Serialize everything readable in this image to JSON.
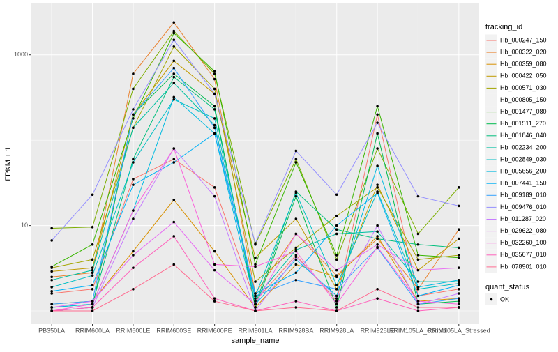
{
  "chart_data": {
    "type": "line",
    "x_label": "sample_name",
    "y_label": "FPKM + 1",
    "categories": [
      "PB350LA",
      "RRIM600LA",
      "RRIM600LE",
      "RRIM600SE",
      "RRIM600PE",
      "RRIM901LA",
      "RRIM928BA",
      "RRIM928LA",
      "RRIM928LE",
      "RRIM105LA_Control",
      "RRIM105LA_Stressed"
    ],
    "log_y": true,
    "grid": true,
    "ylim": [
      0.7,
      4000
    ],
    "yticks": [
      10,
      1000
    ],
    "y_minor_grid": [
      1,
      100
    ],
    "legend_title": "tracking_id",
    "legend_position": "right",
    "series": [
      {
        "name": "Hb_000247_150",
        "color": "#F8766D",
        "values": [
          1.6,
          1.8,
          35,
          60,
          28,
          1.3,
          4.5,
          1.3,
          200,
          1.5,
          1.8
        ]
      },
      {
        "name": "Hb_000322_020",
        "color": "#EA8331",
        "values": [
          2.5,
          2.8,
          600,
          2400,
          520,
          1.6,
          8,
          2.6,
          7,
          1.8,
          9
        ]
      },
      {
        "name": "Hb_000359_080",
        "color": "#D89000",
        "values": [
          1.2,
          1.3,
          5,
          20,
          5,
          1.1,
          3.5,
          2.5,
          7.5,
          1.3,
          1.4
        ]
      },
      {
        "name": "Hb_000422_050",
        "color": "#C09B00",
        "values": [
          2.9,
          3.2,
          200,
          850,
          350,
          4.2,
          12,
          1.8,
          30,
          3,
          7
        ]
      },
      {
        "name": "Hb_000571_030",
        "color": "#A3A500",
        "values": [
          3.2,
          4,
          140,
          1250,
          400,
          2.2,
          5.5,
          13,
          28,
          4,
          4.5
        ]
      },
      {
        "name": "Hb_000805_150",
        "color": "#7CAE00",
        "values": [
          9.3,
          9.6,
          400,
          1900,
          600,
          6,
          60,
          4,
          80,
          8,
          28
        ]
      },
      {
        "name": "Hb_001477_080",
        "color": "#39B600",
        "values": [
          3.3,
          6,
          180,
          1800,
          640,
          3.5,
          55,
          4.5,
          250,
          4.5,
          4.2
        ]
      },
      {
        "name": "Hb_001511_270",
        "color": "#00BB4E",
        "values": [
          1.0,
          1.1,
          200,
          600,
          250,
          1.1,
          22,
          1.1,
          120,
          1.2,
          1.3
        ]
      },
      {
        "name": "Hb_001846_040",
        "color": "#00BF7D",
        "values": [
          1.1,
          1.2,
          60,
          550,
          230,
          1.2,
          25,
          9,
          7,
          6,
          5.5
        ]
      },
      {
        "name": "Hb_002234_200",
        "color": "#00C1A3",
        "values": [
          2.3,
          3.0,
          140,
          470,
          150,
          1.4,
          5.2,
          8,
          8.5,
          2.2,
          2.2
        ]
      },
      {
        "name": "Hb_002849_030",
        "color": "#00BFC4",
        "values": [
          1.9,
          2.6,
          55,
          300,
          180,
          1.5,
          24,
          2,
          25,
          1.8,
          2.1
        ]
      },
      {
        "name": "Hb_005656_200",
        "color": "#00BAE0",
        "values": [
          1.1,
          1.2,
          15,
          320,
          120,
          1.2,
          4,
          1.5,
          50,
          1.9,
          2.3
        ]
      },
      {
        "name": "Hb_007441_150",
        "color": "#00B0F6",
        "values": [
          1.7,
          2.0,
          30,
          55,
          120,
          1.6,
          2.8,
          10,
          24,
          1.5,
          2.0
        ]
      },
      {
        "name": "Hb_009189_010",
        "color": "#35A2FF",
        "values": [
          1.2,
          1.3,
          200,
          700,
          140,
          1.5,
          2.3,
          1.8,
          5.5,
          1.2,
          1.4
        ]
      },
      {
        "name": "Hb_009476_010",
        "color": "#9590FF",
        "values": [
          6.7,
          23,
          230,
          1500,
          350,
          6.2,
          75,
          23,
          160,
          22,
          17
        ]
      },
      {
        "name": "Hb_011287_020",
        "color": "#C77CFF",
        "values": [
          1.0,
          1.1,
          12,
          80,
          22,
          1.0,
          4.3,
          1.4,
          10,
          1.2,
          1.6
        ]
      },
      {
        "name": "Hb_029622_080",
        "color": "#E76BF3",
        "values": [
          1.1,
          1.3,
          4.5,
          11,
          3,
          1.2,
          8,
          3,
          6,
          3,
          3.2
        ]
      },
      {
        "name": "Hb_032260_100",
        "color": "#FA62DB",
        "values": [
          1.0,
          1.2,
          15,
          80,
          3.5,
          3.3,
          5,
          1.2,
          5.6,
          1.3,
          1.2
        ]
      },
      {
        "name": "Hb_035677_010",
        "color": "#FF62BC",
        "values": [
          1.0,
          1.1,
          3.2,
          7.5,
          1.4,
          1.0,
          1.3,
          1.0,
          1.4,
          1.0,
          1.1
        ]
      },
      {
        "name": "Hb_078901_010",
        "color": "#FF6C91",
        "values": [
          1.0,
          1.0,
          1.8,
          3.5,
          1.3,
          1.0,
          1.1,
          1.0,
          1.8,
          1.1,
          1.1
        ]
      }
    ],
    "point_legend_title": "quant_status",
    "point_legend_label": "OK",
    "point_color": "#000000"
  }
}
